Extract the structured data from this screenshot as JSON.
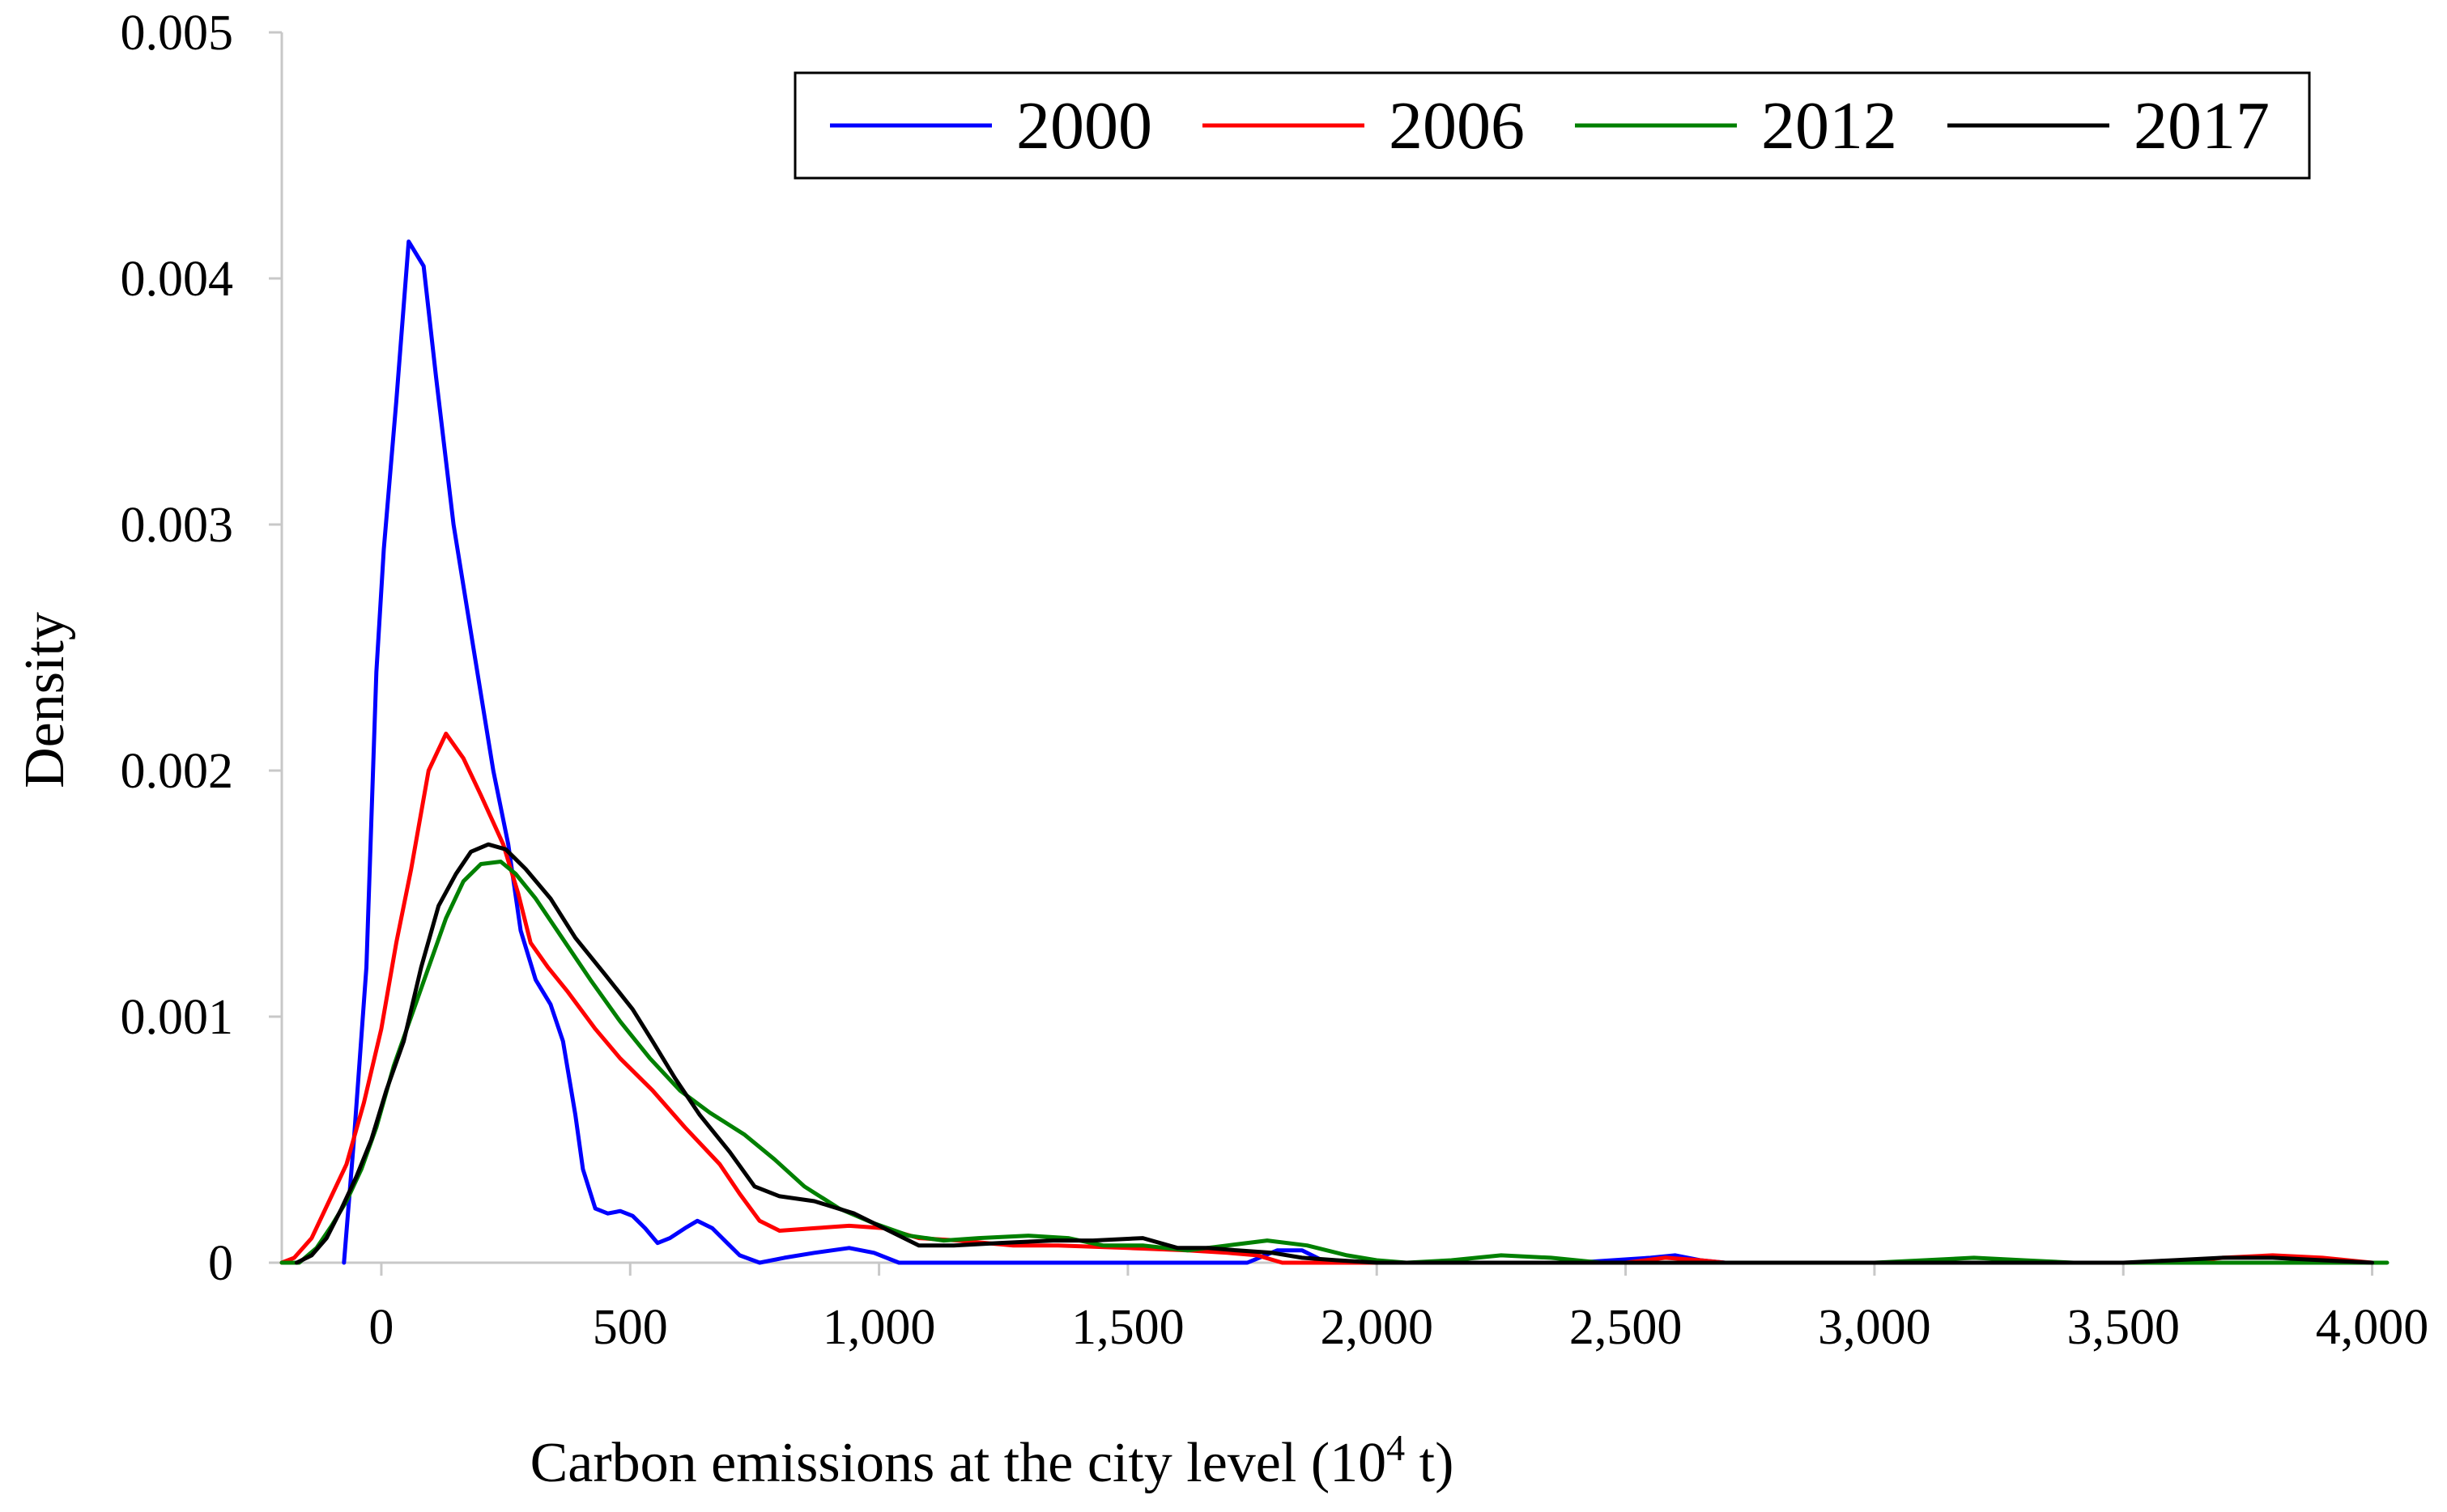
{
  "chart_data": {
    "type": "line",
    "title": "",
    "xlabel": "Carbon emissions at the city level (10",
    "xlabel_sup": "4",
    "xlabel_suffix": " t)",
    "ylabel": "Density",
    "xlim": [
      -200,
      4030
    ],
    "ylim": [
      0,
      0.005
    ],
    "x_ticks": [
      0,
      500,
      1000,
      1500,
      2000,
      2500,
      3000,
      3500,
      4000
    ],
    "x_tick_labels": [
      "0",
      "500",
      "1,000",
      "1,500",
      "2,000",
      "2,500",
      "3,000",
      "3,500",
      "4,000"
    ],
    "y_ticks": [
      0,
      0.001,
      0.002,
      0.003,
      0.004,
      0.005
    ],
    "y_tick_labels": [
      "0",
      "0.001",
      "0.002",
      "0.003",
      "0.004",
      "0.005"
    ],
    "grid": false,
    "legend_position": "top-right",
    "series": [
      {
        "name": "2000",
        "color": "#0000ff",
        "points": [
          [
            -75,
            0
          ],
          [
            -55,
            0.0005
          ],
          [
            -30,
            0.0012
          ],
          [
            -10,
            0.0024
          ],
          [
            5,
            0.0029
          ],
          [
            30,
            0.0035
          ],
          [
            55,
            0.00415
          ],
          [
            85,
            0.00405
          ],
          [
            110,
            0.0036
          ],
          [
            145,
            0.003
          ],
          [
            185,
            0.0025
          ],
          [
            225,
            0.002
          ],
          [
            255,
            0.0017
          ],
          [
            280,
            0.00135
          ],
          [
            310,
            0.00115
          ],
          [
            340,
            0.00105
          ],
          [
            365,
            0.0009
          ],
          [
            390,
            0.0006
          ],
          [
            405,
            0.00038
          ],
          [
            430,
            0.00022
          ],
          [
            455,
            0.0002
          ],
          [
            480,
            0.00021
          ],
          [
            505,
            0.00019
          ],
          [
            530,
            0.00014
          ],
          [
            555,
            8e-05
          ],
          [
            580,
            0.0001
          ],
          [
            610,
            0.00014
          ],
          [
            635,
            0.00017
          ],
          [
            665,
            0.00014
          ],
          [
            695,
            8e-05
          ],
          [
            720,
            3e-05
          ],
          [
            760,
            0
          ],
          [
            810,
            2e-05
          ],
          [
            870,
            4e-05
          ],
          [
            940,
            6e-05
          ],
          [
            990,
            4e-05
          ],
          [
            1040,
            0
          ],
          [
            1200,
            0
          ],
          [
            1500,
            0
          ],
          [
            1740,
            0
          ],
          [
            1800,
            5e-05
          ],
          [
            1850,
            5e-05
          ],
          [
            1900,
            0
          ],
          [
            2000,
            0
          ],
          [
            2400,
            0
          ],
          [
            2550,
            2e-05
          ],
          [
            2600,
            3e-05
          ],
          [
            2650,
            1e-05
          ],
          [
            2700,
            0
          ]
        ]
      },
      {
        "name": "2006",
        "color": "#ff0000",
        "points": [
          [
            -200,
            0
          ],
          [
            -175,
            2e-05
          ],
          [
            -140,
            0.0001
          ],
          [
            -105,
            0.00025
          ],
          [
            -70,
            0.0004
          ],
          [
            -35,
            0.00065
          ],
          [
            0,
            0.00095
          ],
          [
            30,
            0.0013
          ],
          [
            60,
            0.0016
          ],
          [
            95,
            0.002
          ],
          [
            130,
            0.00215
          ],
          [
            165,
            0.00205
          ],
          [
            200,
            0.0019
          ],
          [
            245,
            0.0017
          ],
          [
            275,
            0.0015
          ],
          [
            300,
            0.0013
          ],
          [
            335,
            0.0012
          ],
          [
            375,
            0.0011
          ],
          [
            430,
            0.00095
          ],
          [
            480,
            0.00083
          ],
          [
            545,
            0.0007
          ],
          [
            610,
            0.00055
          ],
          [
            680,
            0.0004
          ],
          [
            720,
            0.00028
          ],
          [
            760,
            0.00017
          ],
          [
            800,
            0.00013
          ],
          [
            870,
            0.00014
          ],
          [
            940,
            0.00015
          ],
          [
            1010,
            0.00014
          ],
          [
            1080,
            0.0001
          ],
          [
            1160,
            9e-05
          ],
          [
            1270,
            7e-05
          ],
          [
            1360,
            7e-05
          ],
          [
            1500,
            6e-05
          ],
          [
            1620,
            5e-05
          ],
          [
            1700,
            4e-05
          ],
          [
            1760,
            3e-05
          ],
          [
            1810,
            0
          ],
          [
            1900,
            0
          ],
          [
            2000,
            0
          ],
          [
            2300,
            0
          ],
          [
            2500,
            0
          ],
          [
            2580,
            2e-05
          ],
          [
            2650,
            1e-05
          ],
          [
            2700,
            0
          ],
          [
            3000,
            0
          ],
          [
            3400,
            0
          ],
          [
            3600,
            0
          ],
          [
            3700,
            2e-05
          ],
          [
            3800,
            3e-05
          ],
          [
            3900,
            2e-05
          ],
          [
            4000,
            0
          ]
        ]
      },
      {
        "name": "2012",
        "color": "#008000",
        "points": [
          [
            -200,
            0
          ],
          [
            -165,
            0
          ],
          [
            -130,
            6e-05
          ],
          [
            -100,
            0.00015
          ],
          [
            -70,
            0.00025
          ],
          [
            -40,
            0.00038
          ],
          [
            -10,
            0.00055
          ],
          [
            25,
            0.0008
          ],
          [
            60,
            0.001
          ],
          [
            95,
            0.0012
          ],
          [
            130,
            0.0014
          ],
          [
            165,
            0.00155
          ],
          [
            200,
            0.00162
          ],
          [
            240,
            0.00163
          ],
          [
            270,
            0.00158
          ],
          [
            310,
            0.00148
          ],
          [
            360,
            0.00133
          ],
          [
            420,
            0.00115
          ],
          [
            480,
            0.00098
          ],
          [
            540,
            0.00083
          ],
          [
            600,
            0.0007
          ],
          [
            660,
            0.00061
          ],
          [
            730,
            0.00052
          ],
          [
            790,
            0.00042
          ],
          [
            850,
            0.00031
          ],
          [
            920,
            0.00022
          ],
          [
            990,
            0.00016
          ],
          [
            1060,
            0.00011
          ],
          [
            1130,
            9e-05
          ],
          [
            1200,
            0.0001
          ],
          [
            1300,
            0.00011
          ],
          [
            1380,
            0.0001
          ],
          [
            1450,
            7e-05
          ],
          [
            1530,
            7e-05
          ],
          [
            1620,
            5e-05
          ],
          [
            1700,
            7e-05
          ],
          [
            1780,
            9e-05
          ],
          [
            1860,
            7e-05
          ],
          [
            1940,
            3e-05
          ],
          [
            2000,
            1e-05
          ],
          [
            2060,
            0
          ],
          [
            2150,
            1e-05
          ],
          [
            2250,
            3e-05
          ],
          [
            2350,
            2e-05
          ],
          [
            2450,
            0
          ],
          [
            2700,
            0
          ],
          [
            3000,
            0
          ],
          [
            3100,
            1e-05
          ],
          [
            3200,
            2e-05
          ],
          [
            3300,
            1e-05
          ],
          [
            3400,
            0
          ],
          [
            4030,
            0
          ]
        ]
      },
      {
        "name": "2017",
        "color": "#000000",
        "points": [
          [
            -170,
            0
          ],
          [
            -140,
            3e-05
          ],
          [
            -110,
            0.0001
          ],
          [
            -80,
            0.00022
          ],
          [
            -50,
            0.00035
          ],
          [
            -20,
            0.0005
          ],
          [
            10,
            0.0007
          ],
          [
            45,
            0.0009
          ],
          [
            80,
            0.0012
          ],
          [
            115,
            0.00145
          ],
          [
            150,
            0.00158
          ],
          [
            180,
            0.00167
          ],
          [
            215,
            0.0017
          ],
          [
            250,
            0.00168
          ],
          [
            290,
            0.0016
          ],
          [
            340,
            0.00148
          ],
          [
            390,
            0.00132
          ],
          [
            450,
            0.00117
          ],
          [
            505,
            0.00103
          ],
          [
            545,
            0.0009
          ],
          [
            590,
            0.00075
          ],
          [
            640,
            0.0006
          ],
          [
            700,
            0.00045
          ],
          [
            750,
            0.00031
          ],
          [
            800,
            0.00027
          ],
          [
            870,
            0.00025
          ],
          [
            950,
            0.0002
          ],
          [
            1020,
            0.00013
          ],
          [
            1080,
            7e-05
          ],
          [
            1150,
            7e-05
          ],
          [
            1240,
            8e-05
          ],
          [
            1350,
            9e-05
          ],
          [
            1430,
            9e-05
          ],
          [
            1530,
            0.0001
          ],
          [
            1600,
            6e-05
          ],
          [
            1660,
            6e-05
          ],
          [
            1720,
            5e-05
          ],
          [
            1790,
            4e-05
          ],
          [
            1850,
            2e-05
          ],
          [
            1920,
            1e-05
          ],
          [
            2000,
            0
          ],
          [
            2100,
            0
          ],
          [
            2300,
            0
          ],
          [
            2500,
            0
          ],
          [
            2650,
            0
          ],
          [
            2800,
            0
          ],
          [
            3000,
            0
          ],
          [
            3300,
            0
          ],
          [
            3500,
            0
          ],
          [
            3600,
            1e-05
          ],
          [
            3700,
            2e-05
          ],
          [
            3800,
            2e-05
          ],
          [
            3900,
            1e-05
          ],
          [
            4000,
            0
          ]
        ]
      }
    ]
  }
}
